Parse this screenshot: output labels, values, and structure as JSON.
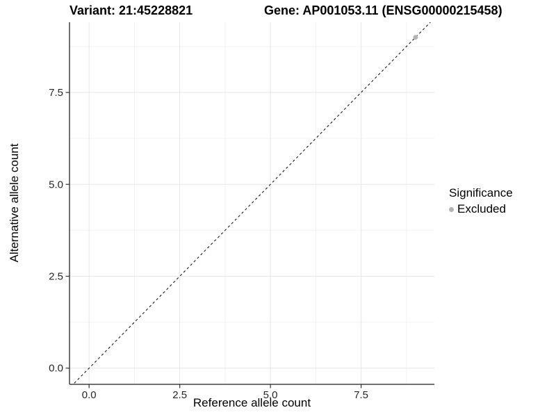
{
  "titles": {
    "left": "Variant: 21:45228821",
    "right": "Gene: AP001053.11 (ENSG00000215458)"
  },
  "chart_data": {
    "type": "scatter",
    "title": "Variant: 21:45228821   Gene: AP001053.11 (ENSG00000215458)",
    "xlabel": "Reference allele count",
    "ylabel": "Alternative allele count",
    "xlim": [
      -0.54,
      9.52
    ],
    "ylim": [
      -0.44,
      9.41
    ],
    "ticks": [
      0,
      2.5,
      5,
      7.5
    ],
    "tick_labels": [
      "0.0",
      "2.5",
      "5.0",
      "7.5"
    ],
    "minor_ticks": [
      1.25,
      3.75,
      6.25,
      8.75
    ],
    "grid": true,
    "reference_line": {
      "equation": "y = x",
      "style": "dashed",
      "color": "#1a1a1a"
    },
    "series": [
      {
        "name": "Excluded",
        "color": "#b3b3b3",
        "points": [
          [
            9,
            9
          ]
        ]
      }
    ],
    "legend": {
      "title": "Significance",
      "position": "right",
      "items": [
        {
          "label": "Excluded",
          "color": "#b3b3b3",
          "marker": "circle"
        }
      ]
    },
    "colors": {
      "axis_line": "#404040",
      "tick_mark": "#333333",
      "tick_text": "#262626",
      "grid_major": "#e6e6e6",
      "grid_minor": "#f2f2f2",
      "background": "#ffffff"
    }
  }
}
